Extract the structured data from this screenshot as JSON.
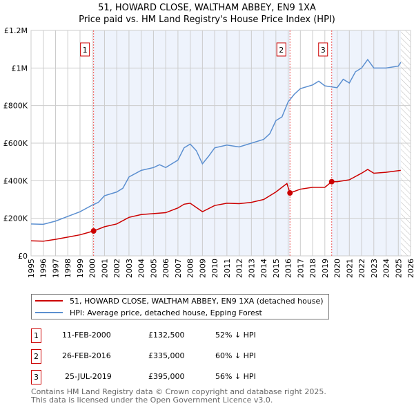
{
  "title": "51, HOWARD CLOSE, WALTHAM ABBEY, EN9 1XA",
  "subtitle": "Price paid vs. HM Land Registry's House Price Index (HPI)",
  "chart_data": {
    "type": "line",
    "xlim": [
      1995,
      2026
    ],
    "ylim": [
      0,
      1200000
    ],
    "x_ticks": [
      "1995",
      "1996",
      "1997",
      "1998",
      "1999",
      "2000",
      "2001",
      "2002",
      "2003",
      "2004",
      "2005",
      "2006",
      "2007",
      "2008",
      "2009",
      "2010",
      "2011",
      "2012",
      "2013",
      "2014",
      "2015",
      "2016",
      "2017",
      "2018",
      "2019",
      "2020",
      "2021",
      "2022",
      "2023",
      "2024",
      "2025",
      "2026"
    ],
    "y_ticks": [
      {
        "v": 0,
        "label": "£0"
      },
      {
        "v": 200000,
        "label": "£200K"
      },
      {
        "v": 400000,
        "label": "£400K"
      },
      {
        "v": 600000,
        "label": "£600K"
      },
      {
        "v": 800000,
        "label": "£800K"
      },
      {
        "v": 1000000,
        "label": "£1M"
      },
      {
        "v": 1200000,
        "label": "£1.2M"
      }
    ],
    "grid": true,
    "series": [
      {
        "name": "51, HOWARD CLOSE, WALTHAM ABBEY, EN9 1XA (detached house)",
        "color": "#cc0000",
        "x": [
          1995,
          1996,
          1997,
          1998,
          1999,
          2000.11,
          2001,
          2002,
          2003,
          2004,
          2005,
          2006,
          2007,
          2007.5,
          2008,
          2009,
          2010,
          2011,
          2012,
          2013,
          2014,
          2015,
          2015.9,
          2016.15,
          2017,
          2018,
          2019,
          2019.56,
          2020,
          2021,
          2022,
          2022.5,
          2023,
          2024,
          2025.2
        ],
        "y": [
          80000,
          78000,
          88000,
          100000,
          112000,
          132500,
          155000,
          170000,
          205000,
          220000,
          225000,
          230000,
          255000,
          275000,
          280000,
          235000,
          268000,
          280000,
          278000,
          285000,
          300000,
          340000,
          385000,
          335000,
          355000,
          365000,
          365000,
          395000,
          395000,
          405000,
          440000,
          460000,
          440000,
          445000,
          455000
        ]
      },
      {
        "name": "HPI: Average price, detached house, Epping Forest",
        "color": "#5b8fd0",
        "x": [
          1995,
          1996,
          1997,
          1998,
          1999,
          2000,
          2000.5,
          2001,
          2002,
          2002.5,
          2003,
          2004,
          2005,
          2005.5,
          2006,
          2007,
          2007.5,
          2008,
          2008.5,
          2009,
          2009.5,
          2010,
          2011,
          2012,
          2013,
          2014,
          2014.5,
          2015,
          2015.5,
          2016,
          2016.5,
          2017,
          2018,
          2018.5,
          2019,
          2020,
          2020.5,
          2021,
          2021.5,
          2022,
          2022.5,
          2023,
          2024,
          2025,
          2025.2
        ],
        "y": [
          170000,
          168000,
          185000,
          210000,
          235000,
          270000,
          285000,
          320000,
          340000,
          360000,
          420000,
          455000,
          470000,
          485000,
          470000,
          510000,
          575000,
          595000,
          560000,
          490000,
          530000,
          575000,
          590000,
          580000,
          600000,
          620000,
          650000,
          720000,
          740000,
          820000,
          860000,
          890000,
          910000,
          930000,
          905000,
          895000,
          940000,
          920000,
          980000,
          1000000,
          1045000,
          1000000,
          1000000,
          1010000,
          1030000
        ]
      }
    ],
    "sales": [
      {
        "n": "1",
        "x": 2000.11,
        "y": 132500
      },
      {
        "n": "2",
        "x": 2016.15,
        "y": 335000
      },
      {
        "n": "3",
        "x": 2019.56,
        "y": 395000
      }
    ],
    "shaded": [
      [
        2000.11,
        2016.15
      ],
      [
        2019.56,
        2025.2
      ]
    ],
    "hatched_from": 2025.2
  },
  "legend": [
    "51, HOWARD CLOSE, WALTHAM ABBEY, EN9 1XA (detached house)",
    "HPI: Average price, detached house, Epping Forest"
  ],
  "transactions": [
    {
      "n": "1",
      "date": "11-FEB-2000",
      "price": "£132,500",
      "hpi": "52% ↓ HPI"
    },
    {
      "n": "2",
      "date": "26-FEB-2016",
      "price": "£335,000",
      "hpi": "60% ↓ HPI"
    },
    {
      "n": "3",
      "date": "25-JUL-2019",
      "price": "£395,000",
      "hpi": "56% ↓ HPI"
    }
  ],
  "footer": [
    "Contains HM Land Registry data © Crown copyright and database right 2025.",
    "This data is licensed under the Open Government Licence v3.0."
  ]
}
